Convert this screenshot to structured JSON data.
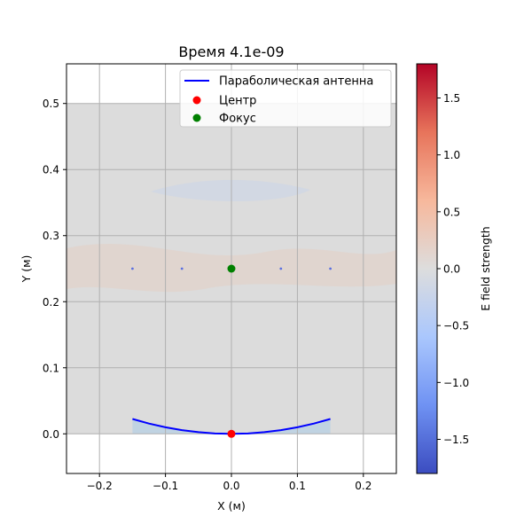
{
  "chart_data": {
    "type": "heatmap",
    "title": "Время 4.1e-09",
    "xlabel": "X (м)",
    "ylabel": "Y (м)",
    "xlim": [
      -0.25,
      0.25
    ],
    "ylim": [
      -0.06,
      0.56
    ],
    "xticks": [
      -0.2,
      -0.1,
      0.0,
      0.1,
      0.2
    ],
    "xtick_labels": [
      "−0.2",
      "−0.1",
      "0.0",
      "0.1",
      "0.2"
    ],
    "yticks": [
      0.0,
      0.1,
      0.2,
      0.3,
      0.4,
      0.5
    ],
    "ytick_labels": [
      "0.0",
      "0.1",
      "0.2",
      "0.3",
      "0.4",
      "0.5"
    ],
    "grid": true,
    "legend_placement": "top-right",
    "field_extent": {
      "x": [
        -0.25,
        0.25
      ],
      "y": [
        0.0,
        0.5
      ]
    },
    "field_background_color": "#dcdcdc",
    "sources": {
      "x": [
        -0.15,
        -0.075,
        0.075,
        0.15
      ],
      "y": [
        0.25,
        0.25,
        0.25,
        0.25
      ],
      "color": "#5a6fe0"
    },
    "series": [
      {
        "name": "Параболическая антенна",
        "kind": "line",
        "color": "#0000ff",
        "x": [
          -0.15,
          -0.125,
          -0.1,
          -0.075,
          -0.05,
          -0.025,
          0.0,
          0.025,
          0.05,
          0.075,
          0.1,
          0.125,
          0.15
        ],
        "y": [
          0.0225,
          0.0156,
          0.01,
          0.0056,
          0.0025,
          0.0006,
          0.0,
          0.0006,
          0.0025,
          0.0056,
          0.01,
          0.0156,
          0.0225
        ]
      },
      {
        "name": "Центр",
        "kind": "point",
        "color": "#ff0000",
        "x": [
          0.0
        ],
        "y": [
          0.0
        ]
      },
      {
        "name": "Фокус",
        "kind": "point",
        "color": "#008000",
        "x": [
          0.0
        ],
        "y": [
          0.25
        ]
      }
    ],
    "colorbar": {
      "label": "E field strength",
      "range": [
        -1.8,
        1.8
      ],
      "ticks": [
        -1.5,
        -1.0,
        -0.5,
        0.0,
        0.5,
        1.0,
        1.5
      ],
      "tick_labels": [
        "−1.5",
        "−1.0",
        "−0.5",
        "0.0",
        "0.5",
        "1.0",
        "1.5"
      ],
      "colormap": "coolwarm",
      "colormap_stops": [
        "#3b4cc0",
        "#6f92f3",
        "#aac7fd",
        "#dddddd",
        "#f7b89c",
        "#e7745b",
        "#b40426"
      ]
    }
  }
}
